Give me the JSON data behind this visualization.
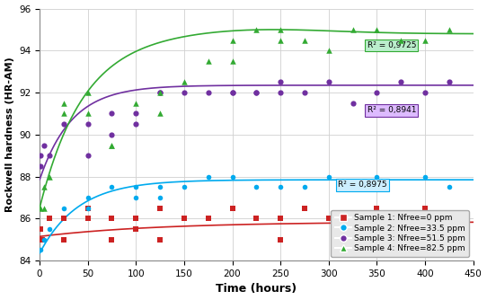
{
  "title": "",
  "xlabel": "Time (hours)",
  "ylabel": "Rockwell hardness (HR-AM)",
  "xlim": [
    0,
    450
  ],
  "ylim": [
    84,
    96
  ],
  "yticks": [
    84,
    86,
    88,
    90,
    92,
    94,
    96
  ],
  "xticks": [
    0,
    50,
    100,
    150,
    200,
    250,
    300,
    350,
    400,
    450
  ],
  "background_color": "#ffffff",
  "grid_color": "#d0d0d0",
  "sample1_scatter": {
    "x": [
      1,
      3,
      10,
      25,
      25,
      50,
      50,
      75,
      75,
      100,
      100,
      125,
      125,
      150,
      175,
      200,
      225,
      250,
      250,
      275,
      300,
      350,
      400,
      425,
      425
    ],
    "y": [
      85.5,
      85.0,
      86.0,
      86.0,
      85.0,
      86.5,
      86.0,
      86.0,
      85.0,
      86.0,
      85.5,
      86.5,
      85.0,
      86.0,
      86.0,
      86.5,
      86.0,
      86.0,
      85.0,
      86.5,
      86.0,
      86.5,
      86.5,
      86.0,
      85.5
    ],
    "color": "#cc2222",
    "marker": "s",
    "label": "Sample 1: Nfree=0 ppm"
  },
  "sample2_scatter": {
    "x": [
      1,
      5,
      10,
      25,
      50,
      50,
      75,
      100,
      100,
      125,
      125,
      150,
      175,
      200,
      225,
      250,
      275,
      300,
      350,
      400,
      425
    ],
    "y": [
      84.5,
      85.0,
      85.5,
      86.5,
      87.0,
      86.5,
      87.5,
      87.5,
      87.0,
      87.5,
      87.0,
      87.5,
      88.0,
      88.0,
      87.5,
      87.5,
      87.5,
      88.0,
      88.0,
      88.0,
      87.5
    ],
    "color": "#00aaee",
    "marker": "o",
    "label": "Sample 2: Nfree=33.5 ppm"
  },
  "sample2_r2": "R² = 0,8975",
  "sample3_scatter": {
    "x": [
      1,
      1,
      5,
      10,
      25,
      50,
      50,
      75,
      75,
      100,
      100,
      125,
      125,
      150,
      175,
      200,
      200,
      225,
      225,
      250,
      250,
      275,
      300,
      325,
      350,
      375,
      400,
      425
    ],
    "y": [
      89.0,
      88.5,
      89.5,
      89.0,
      90.5,
      90.5,
      89.0,
      91.0,
      90.0,
      91.0,
      90.5,
      92.0,
      92.0,
      92.0,
      92.0,
      92.0,
      92.0,
      92.0,
      92.0,
      92.0,
      92.5,
      92.0,
      92.5,
      91.5,
      92.0,
      92.5,
      92.0,
      92.5
    ],
    "color": "#7030a0",
    "marker": "o",
    "label": "Sample 3: Nfree=51.5 ppm"
  },
  "sample3_r2": "R² = 0,8941",
  "sample4_scatter": {
    "x": [
      1,
      5,
      5,
      10,
      25,
      25,
      50,
      50,
      75,
      75,
      100,
      125,
      125,
      150,
      175,
      200,
      200,
      225,
      250,
      250,
      275,
      300,
      325,
      350,
      375,
      400,
      425
    ],
    "y": [
      86.5,
      87.5,
      86.5,
      88.0,
      91.5,
      91.0,
      92.0,
      91.0,
      89.5,
      89.5,
      91.5,
      92.0,
      91.0,
      92.5,
      93.5,
      94.5,
      93.5,
      95.0,
      95.0,
      94.5,
      94.5,
      94.0,
      95.0,
      95.0,
      94.5,
      94.5,
      95.0
    ],
    "color": "#33aa33",
    "marker": "^",
    "label": "Sample 4: Nfree=82.5 ppm"
  },
  "sample4_r2": "R² = 0,9725",
  "r2_colors": {
    "s2_face": "#cceeff",
    "s2_edge": "#00aaee",
    "s3_face": "#ddbbff",
    "s3_edge": "#7030a0",
    "s4_face": "#bbeecc",
    "s4_edge": "#33aa33"
  },
  "legend_bg": "#e8e8e8",
  "legend_edge": "#aaaaaa"
}
